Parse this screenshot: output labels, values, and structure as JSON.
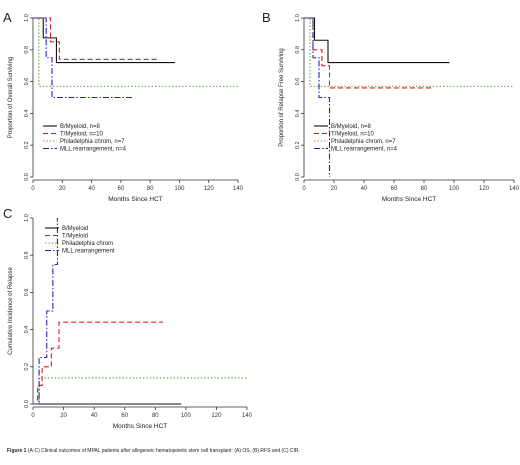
{
  "figure": {
    "caption_label": "Figure 1",
    "caption_text": "(A-C) Clinical outcomes of MPAL patients after allogeneic hematopoietic stem cell transplant: (A) OS, (B) RFS and (C) CIR."
  },
  "chart_data": [
    {
      "panel": "A",
      "type": "line",
      "step": true,
      "xlabel": "Months Since HCT",
      "ylabel": "Proportion of Overall Surviving",
      "xlim": [
        0,
        140
      ],
      "ylim": [
        0,
        1
      ],
      "xticks": [
        0,
        20,
        40,
        60,
        80,
        100,
        120,
        140
      ],
      "yticks": [
        0.0,
        0.2,
        0.4,
        0.6,
        0.8,
        1.0
      ],
      "legend_position": "bottom-left",
      "series": [
        {
          "name": "B/Myeloid, n=8",
          "color": "#111111",
          "dash": "solid",
          "x": [
            0,
            7,
            16,
            97
          ],
          "y": [
            1.0,
            0.875,
            0.72,
            0.72
          ]
        },
        {
          "name": "T/Myeloid, n=10",
          "color": "#d62020",
          "dash": "dashed",
          "x": [
            0,
            12,
            18,
            85
          ],
          "y": [
            1.0,
            0.85,
            0.74,
            0.74
          ]
        },
        {
          "name": "Philadelphia chrom, n=7",
          "color": "#5aaa2a",
          "dash": "dotted",
          "x": [
            0,
            4,
            140
          ],
          "y": [
            1.0,
            0.57,
            0.57
          ]
        },
        {
          "name": "MLL rearrangement, n=4",
          "color": "#2525b8",
          "dash": "dashdot",
          "x": [
            0,
            9,
            13,
            68
          ],
          "y": [
            1.0,
            0.75,
            0.5,
            0.5
          ]
        }
      ]
    },
    {
      "panel": "B",
      "type": "line",
      "step": true,
      "xlabel": "Months Since HCT",
      "ylabel": "Proportion of Relapse Free Surviving",
      "xlim": [
        0,
        140
      ],
      "ylim": [
        0,
        1
      ],
      "xticks": [
        0,
        20,
        40,
        60,
        80,
        100,
        120,
        140
      ],
      "yticks": [
        0.0,
        0.2,
        0.4,
        0.6,
        0.8,
        1.0
      ],
      "legend_position": "bottom-left",
      "series": [
        {
          "name": "B/Myeloid, n=8",
          "color": "#111111",
          "dash": "solid",
          "x": [
            0,
            7,
            16,
            97
          ],
          "y": [
            1.0,
            0.86,
            0.72,
            0.72
          ]
        },
        {
          "name": "T/Myeloid, n=10",
          "color": "#d62020",
          "dash": "dashed",
          "x": [
            0,
            6,
            12,
            17,
            85
          ],
          "y": [
            1.0,
            0.8,
            0.7,
            0.56,
            0.56
          ]
        },
        {
          "name": "Philadelphia chrom, n=7",
          "color": "#5aaa2a",
          "dash": "dotted",
          "x": [
            0,
            4,
            140
          ],
          "y": [
            1.0,
            0.57,
            0.57
          ]
        },
        {
          "name": "MLL rearrangement, n=4",
          "color": "#2525b8",
          "dash": "dashdot",
          "x": [
            0,
            6,
            10,
            17
          ],
          "y": [
            1.0,
            0.75,
            0.5,
            0.0
          ]
        }
      ]
    },
    {
      "panel": "C",
      "type": "line",
      "step": true,
      "xlabel": "Months Since HCT",
      "ylabel": "Cumulative Incidence of Relapse",
      "xlim": [
        0,
        140
      ],
      "ylim": [
        0,
        1
      ],
      "xticks": [
        0,
        20,
        40,
        60,
        80,
        100,
        120,
        140
      ],
      "yticks": [
        0.0,
        0.2,
        0.4,
        0.6,
        0.8,
        1.0
      ],
      "legend_position": "top-left",
      "series": [
        {
          "name": "B/Myeloid",
          "color": "#111111",
          "dash": "solid",
          "x": [
            0,
            97
          ],
          "y": [
            0.0,
            0.0
          ]
        },
        {
          "name": "T/Myeloid",
          "color": "#d62020",
          "dash": "dashed",
          "x": [
            0,
            3,
            6,
            12,
            17,
            85
          ],
          "y": [
            0.0,
            0.1,
            0.2,
            0.3,
            0.44,
            0.44
          ]
        },
        {
          "name": "Philadelphia chrom",
          "color": "#5aaa2a",
          "dash": "dotted",
          "x": [
            0,
            4,
            140
          ],
          "y": [
            0.0,
            0.14,
            0.14
          ]
        },
        {
          "name": "MLL rearrangement",
          "color": "#2525b8",
          "dash": "dashdot",
          "x": [
            0,
            4,
            9,
            13,
            16
          ],
          "y": [
            0.0,
            0.25,
            0.5,
            0.75,
            1.0
          ]
        }
      ]
    }
  ]
}
